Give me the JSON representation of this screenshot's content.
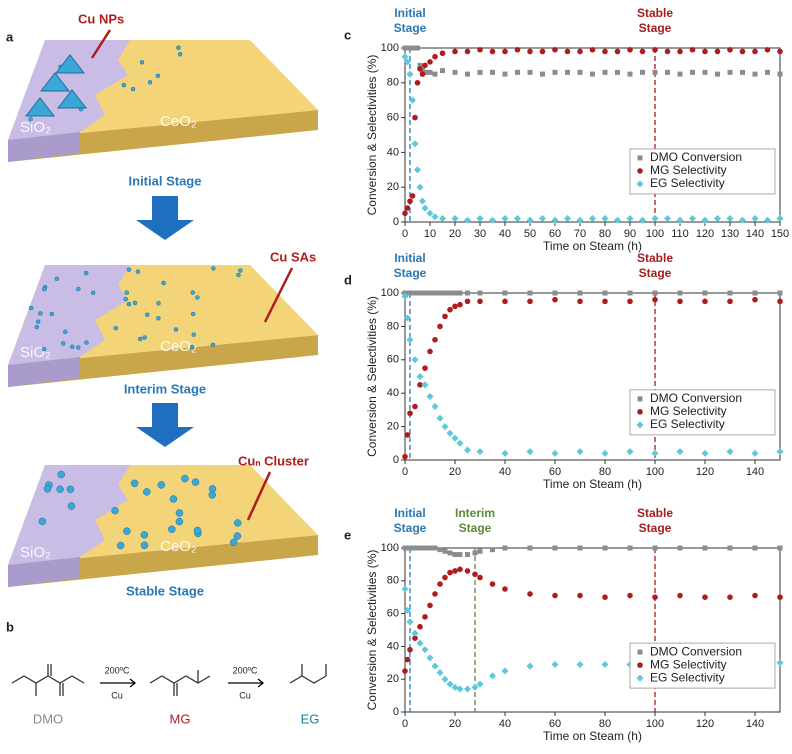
{
  "figure": {
    "panel_a": "a",
    "panel_b": "b",
    "cu_nps": "Cu NPs",
    "cu_sas": "Cu SAs",
    "cun_cluster": "Cuₙ Cluster",
    "sio2": "SiO₂",
    "ceo2": "CeO₂",
    "stages": [
      "Initial Stage",
      "Interim Stage",
      "Stable Stage"
    ],
    "reaction": {
      "temp": "200ºC",
      "catalyst": "Cu",
      "compounds": [
        "DMO",
        "MG",
        "EG"
      ]
    }
  },
  "chart_data": [
    {
      "type": "scatter",
      "panel": "c",
      "xlabel": "Time on Steam (h)",
      "ylabel": "Conversion & Selectivities (%)",
      "xlim": [
        0,
        150
      ],
      "xticks": [
        0,
        10,
        20,
        30,
        40,
        50,
        60,
        70,
        80,
        90,
        100,
        110,
        120,
        130,
        140,
        150
      ],
      "ylim": [
        0,
        100
      ],
      "yticks": [
        0,
        20,
        40,
        60,
        80,
        100
      ],
      "legend": "right",
      "annotations": [
        {
          "x": 2,
          "lines": [
            "Initial",
            "Stage"
          ],
          "color": "#2a78b8"
        },
        {
          "x": 100,
          "lines": [
            "Stable",
            "Stage"
          ],
          "color": "#a51d1d"
        }
      ],
      "x": [
        0,
        1,
        2,
        3,
        4,
        5,
        6,
        7,
        8,
        10,
        12,
        15,
        20,
        25,
        30,
        35,
        40,
        45,
        50,
        55,
        60,
        65,
        70,
        75,
        80,
        85,
        90,
        95,
        100,
        105,
        110,
        115,
        120,
        125,
        130,
        135,
        140,
        145,
        150
      ],
      "series": [
        {
          "name": "DMO Conversion",
          "color": "#8c8c8c",
          "marker": "square",
          "values": [
            100,
            100,
            100,
            100,
            100,
            100,
            90,
            87,
            86,
            86,
            85,
            87,
            86,
            85,
            86,
            86,
            85,
            86,
            86,
            85,
            86,
            86,
            86,
            85,
            86,
            86,
            85,
            86,
            86,
            86,
            85,
            86,
            86,
            85,
            86,
            86,
            85,
            86,
            85
          ]
        },
        {
          "name": "MG Selectivity",
          "color": "#b01c1c",
          "marker": "circle",
          "values": [
            5,
            8,
            12,
            15,
            60,
            80,
            88,
            85,
            90,
            92,
            95,
            97,
            98,
            98,
            99,
            98,
            98,
            99,
            98,
            98,
            99,
            98,
            98,
            99,
            98,
            98,
            99,
            98,
            99,
            98,
            98,
            99,
            98,
            98,
            99,
            98,
            98,
            99,
            98
          ]
        },
        {
          "name": "EG Selectivity",
          "color": "#5bc8dc",
          "marker": "diamond",
          "values": [
            95,
            92,
            85,
            70,
            45,
            30,
            20,
            12,
            8,
            5,
            3,
            2,
            2,
            1,
            2,
            1,
            2,
            2,
            1,
            2,
            1,
            2,
            1,
            2,
            2,
            1,
            2,
            1,
            2,
            2,
            1,
            2,
            1,
            2,
            2,
            1,
            2,
            1,
            2
          ]
        }
      ]
    },
    {
      "type": "scatter",
      "panel": "d",
      "xlabel": "Time on Steam (h)",
      "ylabel": "Conversion & Selectivities (%)",
      "xlim": [
        0,
        150
      ],
      "xticks": [
        0,
        20,
        40,
        60,
        80,
        100,
        120,
        140
      ],
      "ylim": [
        0,
        100
      ],
      "yticks": [
        0,
        20,
        40,
        60,
        80,
        100
      ],
      "legend": "right",
      "annotations": [
        {
          "x": 2,
          "lines": [
            "Initial",
            "Stage"
          ],
          "color": "#2a78b8"
        },
        {
          "x": 100,
          "lines": [
            "Stable",
            "Stage"
          ],
          "color": "#a51d1d"
        }
      ],
      "x": [
        0,
        1,
        2,
        4,
        6,
        8,
        10,
        12,
        14,
        16,
        18,
        20,
        22,
        25,
        30,
        40,
        50,
        60,
        70,
        80,
        90,
        100,
        110,
        120,
        130,
        140,
        150
      ],
      "series": [
        {
          "name": "DMO Conversion",
          "color": "#8c8c8c",
          "marker": "square",
          "values": [
            100,
            100,
            100,
            100,
            100,
            100,
            100,
            100,
            100,
            100,
            100,
            100,
            100,
            100,
            100,
            100,
            100,
            100,
            100,
            100,
            100,
            100,
            100,
            100,
            100,
            100,
            100
          ]
        },
        {
          "name": "MG Selectivity",
          "color": "#b01c1c",
          "marker": "circle",
          "values": [
            2,
            15,
            28,
            32,
            45,
            55,
            65,
            72,
            80,
            86,
            90,
            92,
            93,
            95,
            95,
            95,
            95,
            96,
            95,
            95,
            95,
            96,
            95,
            95,
            95,
            96,
            95
          ]
        },
        {
          "name": "EG Selectivity",
          "color": "#5bc8dc",
          "marker": "diamond",
          "values": [
            98,
            85,
            72,
            60,
            50,
            45,
            38,
            32,
            25,
            20,
            16,
            13,
            10,
            6,
            5,
            4,
            5,
            4,
            5,
            4,
            5,
            4,
            5,
            4,
            5,
            4,
            5
          ]
        }
      ]
    },
    {
      "type": "scatter",
      "panel": "e",
      "xlabel": "Time on Steam (h)",
      "ylabel": "Conversion & Selectivities (%)",
      "xlim": [
        0,
        150
      ],
      "xticks": [
        0,
        20,
        40,
        60,
        80,
        100,
        120,
        140
      ],
      "ylim": [
        0,
        100
      ],
      "yticks": [
        0,
        20,
        40,
        60,
        80,
        100
      ],
      "legend": "right",
      "annotations": [
        {
          "x": 2,
          "lines": [
            "Initial",
            "Stage"
          ],
          "color": "#2a78b8"
        },
        {
          "x": 28,
          "lines": [
            "Interim",
            "Stage"
          ],
          "color": "#5a8a3a"
        },
        {
          "x": 100,
          "lines": [
            "Stable",
            "Stage"
          ],
          "color": "#a51d1d"
        }
      ],
      "x": [
        0,
        1,
        2,
        4,
        6,
        8,
        10,
        12,
        14,
        16,
        18,
        20,
        22,
        25,
        28,
        30,
        35,
        40,
        50,
        60,
        70,
        80,
        90,
        100,
        110,
        120,
        130,
        140,
        150
      ],
      "series": [
        {
          "name": "DMO Conversion",
          "color": "#8c8c8c",
          "marker": "square",
          "values": [
            100,
            100,
            100,
            100,
            100,
            100,
            100,
            100,
            99,
            98,
            97,
            96,
            96,
            96,
            97,
            98,
            99,
            100,
            100,
            100,
            100,
            100,
            100,
            100,
            100,
            100,
            100,
            100,
            100
          ]
        },
        {
          "name": "MG Selectivity",
          "color": "#b01c1c",
          "marker": "circle",
          "values": [
            25,
            32,
            38,
            45,
            52,
            58,
            65,
            72,
            78,
            82,
            85,
            86,
            87,
            86,
            84,
            82,
            78,
            75,
            72,
            71,
            71,
            70,
            71,
            70,
            71,
            70,
            70,
            71,
            70
          ]
        },
        {
          "name": "EG Selectivity",
          "color": "#5bc8dc",
          "marker": "diamond",
          "values": [
            75,
            62,
            55,
            48,
            42,
            38,
            33,
            28,
            24,
            20,
            17,
            15,
            14,
            14,
            15,
            17,
            22,
            25,
            28,
            29,
            29,
            29,
            29,
            28,
            29,
            29,
            29,
            30,
            30
          ]
        }
      ]
    }
  ]
}
